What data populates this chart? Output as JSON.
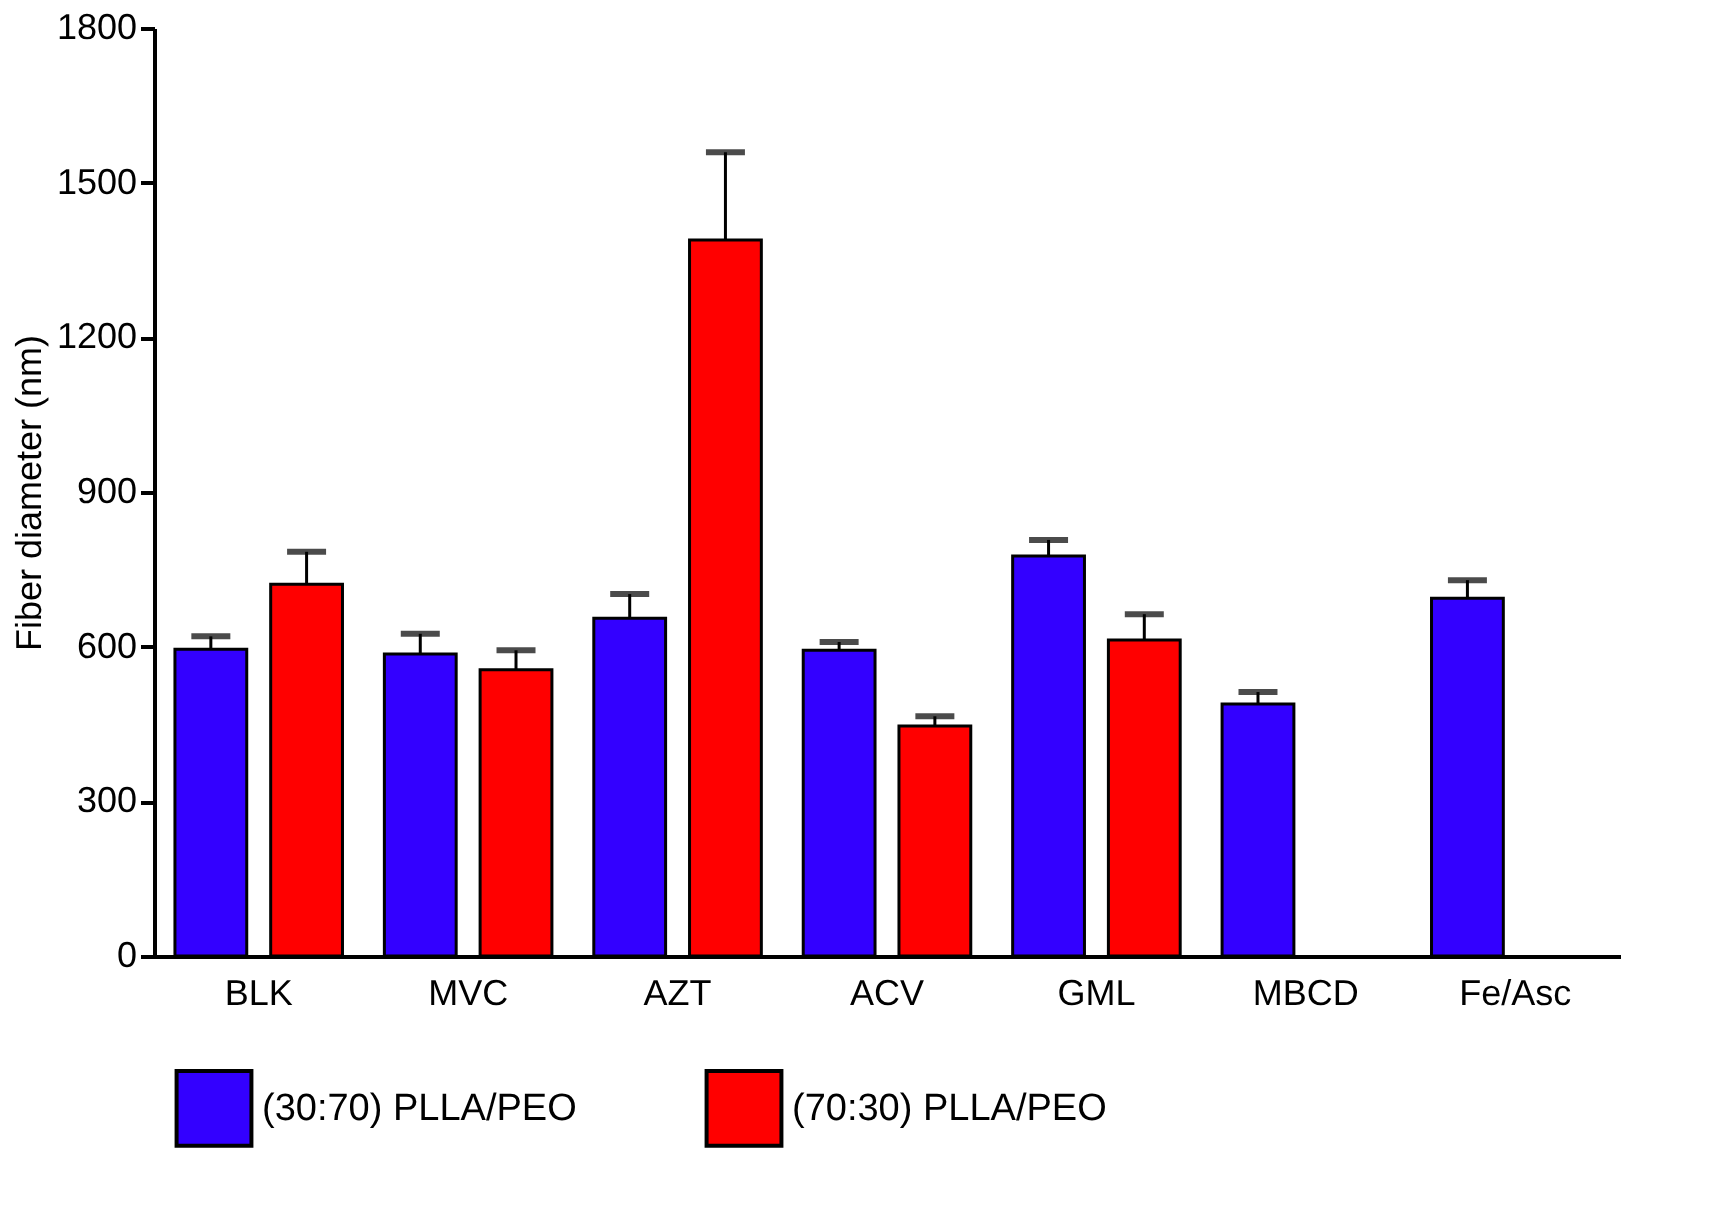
{
  "chart_data": {
    "type": "bar",
    "ylabel": "Fiber diameter (nm)",
    "categories": [
      "BLK",
      "MVC",
      "AZT",
      "ACV",
      "GML",
      "MBCD",
      "Fe/Asc"
    ],
    "series": [
      {
        "name": "(30:70) PLLA/PEO",
        "color": "#3300ff",
        "values": [
          595,
          586,
          655,
          593,
          776,
          489,
          694
        ],
        "errors": [
          25,
          39,
          47,
          16,
          31,
          23,
          35
        ]
      },
      {
        "name": "(70:30) PLLA/PEO",
        "color": "#ff0000",
        "values": [
          721,
          555,
          1389,
          446,
          613,
          null,
          null
        ],
        "errors": [
          63,
          38,
          170,
          19,
          50,
          null,
          null
        ]
      }
    ],
    "ylim": [
      0,
      1800
    ],
    "yticks": [
      0,
      300,
      600,
      900,
      1200,
      1500,
      1800
    ],
    "grid": false,
    "legend": "bottom"
  }
}
